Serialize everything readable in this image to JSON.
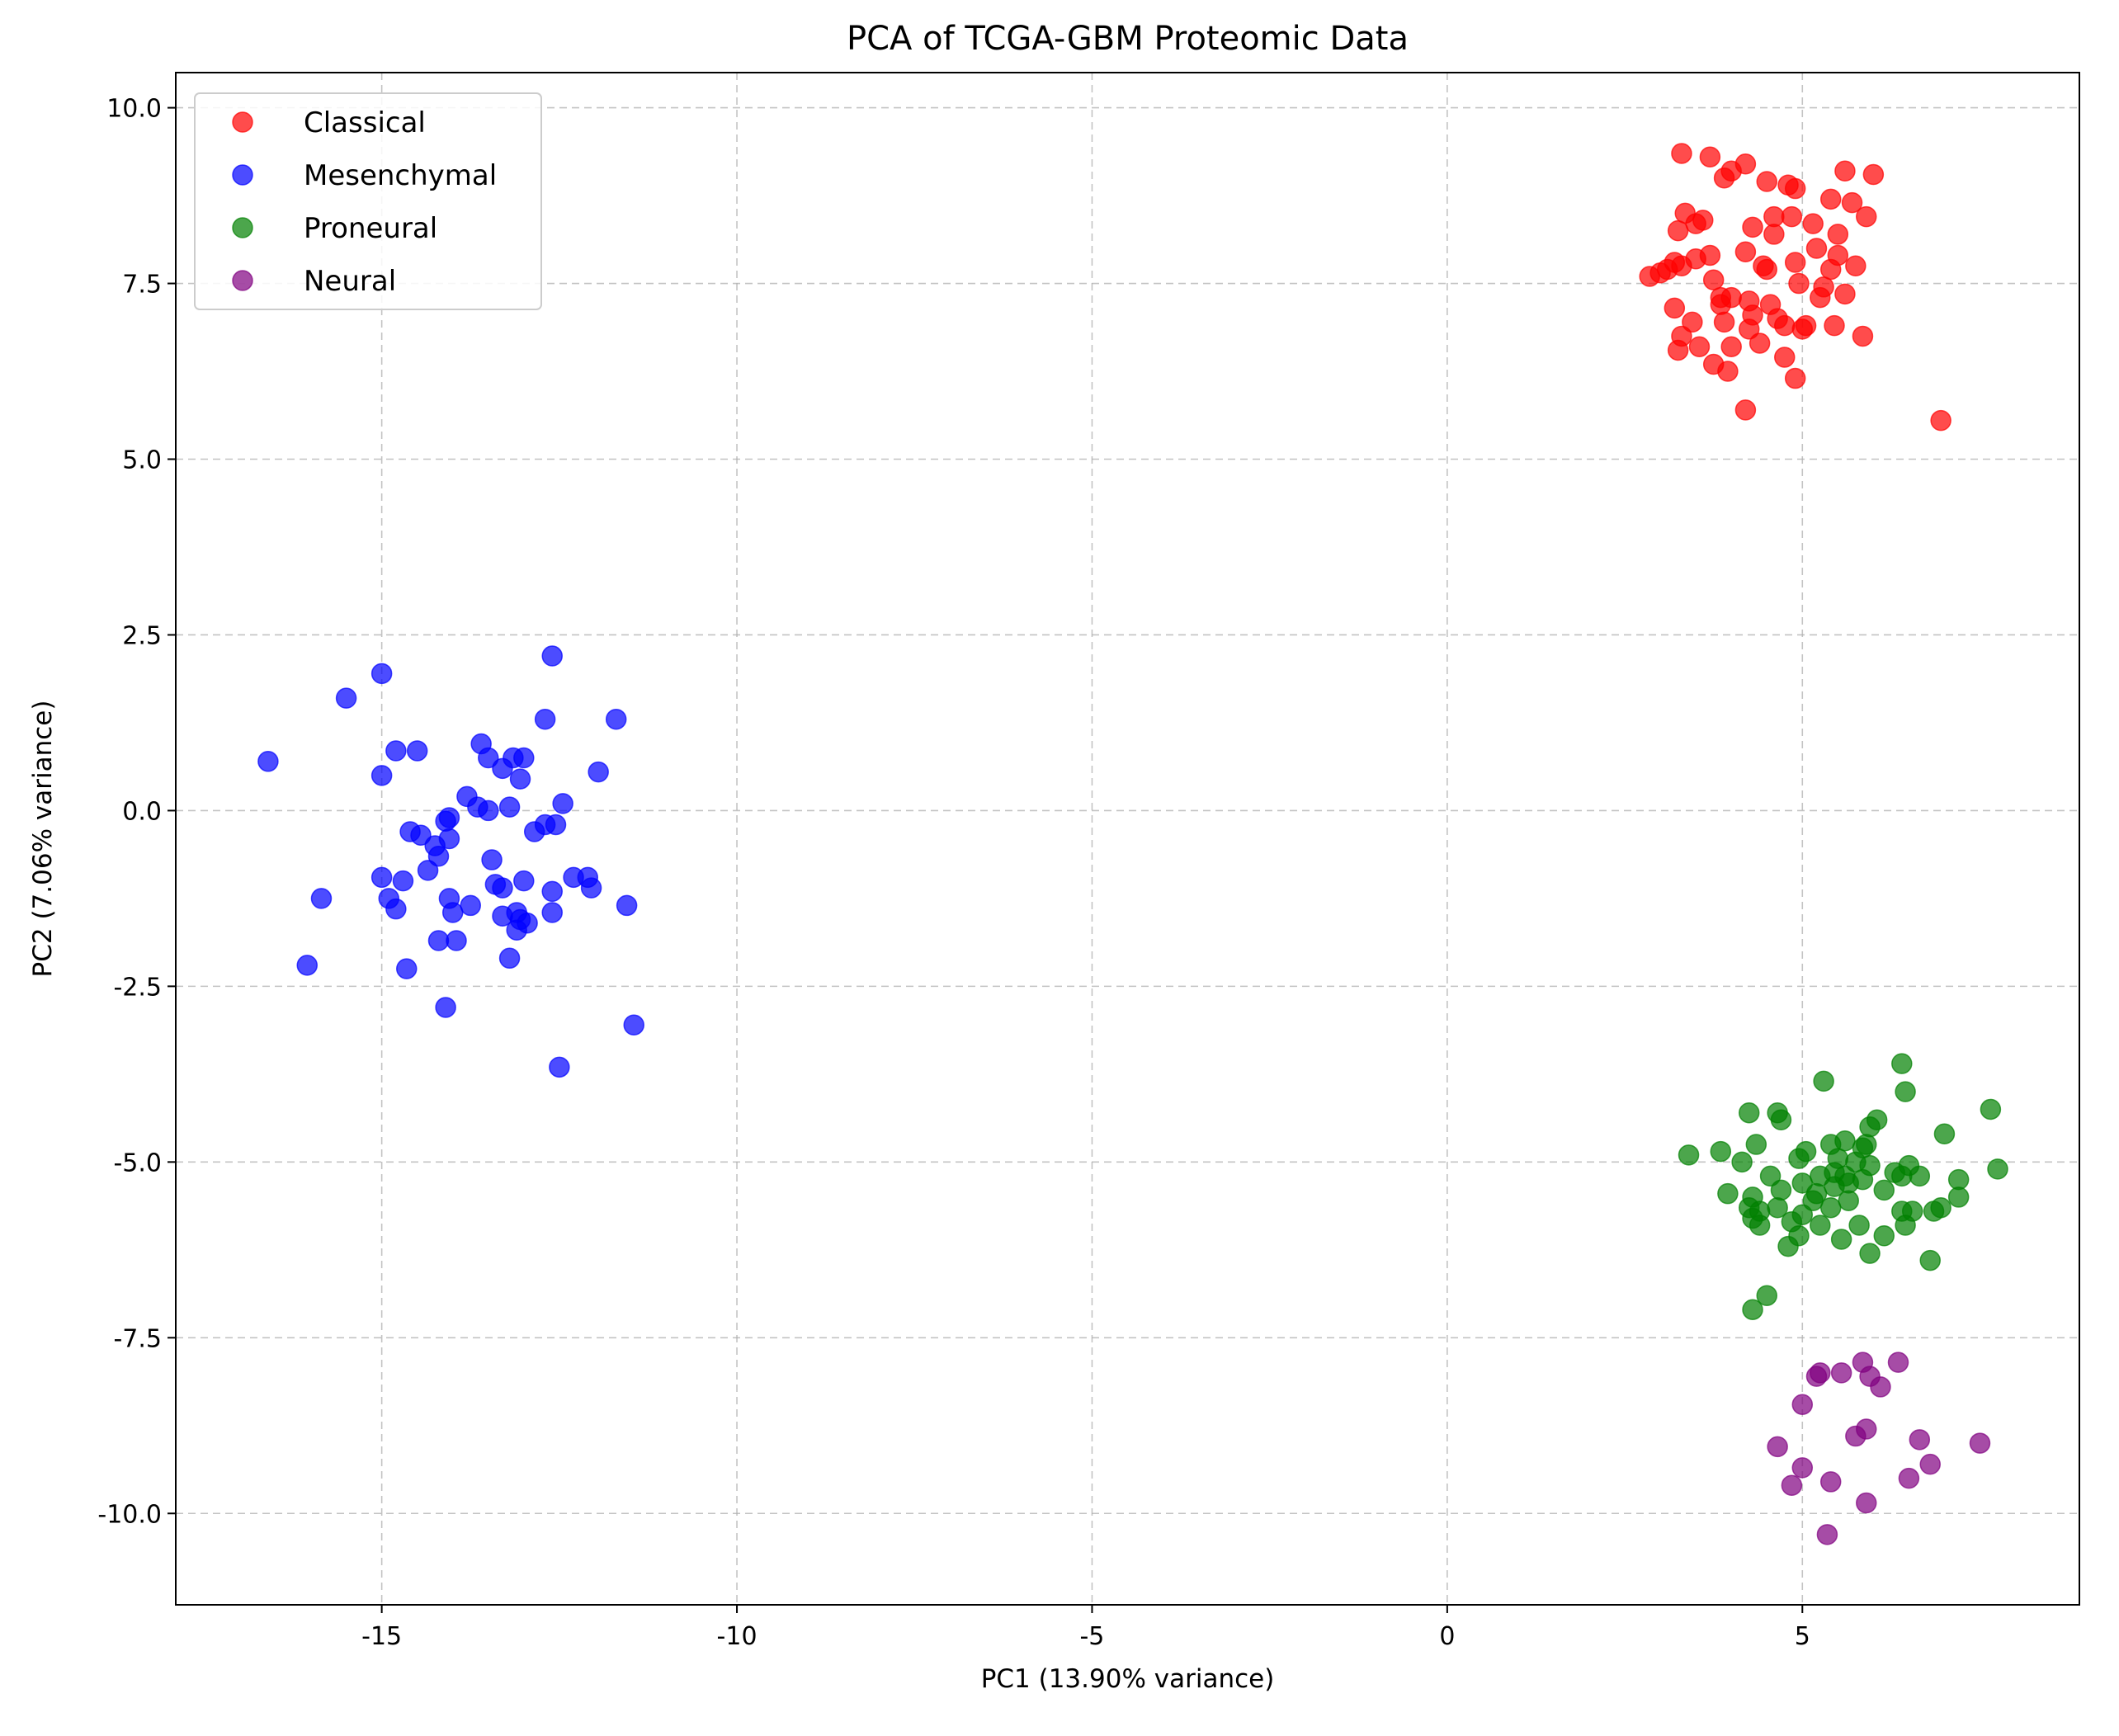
{
  "chart_data": {
    "type": "scatter",
    "title": "PCA of TCGA-GBM Proteomic Data",
    "xlabel": "PC1 (13.90% variance)",
    "ylabel": "PC2 (7.06% variance)",
    "xlim": [
      -17.9,
      8.9
    ],
    "ylim": [
      -11.3,
      10.5
    ],
    "xticks": [
      -15,
      -10,
      -5,
      0,
      5
    ],
    "xtick_labels": [
      "-15",
      "-10",
      "-5",
      "0",
      "5"
    ],
    "yticks": [
      -10,
      -7.5,
      -5,
      -2.5,
      0,
      2.5,
      5,
      7.5,
      10
    ],
    "ytick_labels": [
      "-10.0",
      "-7.5",
      "-5.0",
      "-2.5",
      "0.0",
      "2.5",
      "5.0",
      "7.5",
      "10.0"
    ],
    "grid": true,
    "legend_position": "top-left",
    "marker_alpha": 0.7,
    "series": [
      {
        "name": "Classical",
        "color": "#ff0000",
        "points": [
          [
            3.3,
            9.35
          ],
          [
            3.7,
            9.3
          ],
          [
            4.2,
            9.2
          ],
          [
            3.35,
            8.5
          ],
          [
            3.5,
            8.35
          ],
          [
            3.25,
            8.25
          ],
          [
            3.6,
            8.4
          ],
          [
            4.3,
            8.3
          ],
          [
            4.6,
            8.45
          ],
          [
            4.85,
            8.45
          ],
          [
            5.15,
            8.35
          ],
          [
            5.5,
            8.2
          ],
          [
            5.4,
            8.7
          ],
          [
            5.7,
            8.65
          ],
          [
            5.6,
            9.1
          ],
          [
            6.0,
            9.05
          ],
          [
            4.0,
            9.1
          ],
          [
            3.9,
            9.0
          ],
          [
            4.5,
            8.95
          ],
          [
            4.8,
            8.9
          ],
          [
            4.9,
            8.85
          ],
          [
            5.9,
            8.45
          ],
          [
            3.1,
            7.7
          ],
          [
            3.3,
            7.75
          ],
          [
            3.7,
            7.9
          ],
          [
            4.2,
            7.95
          ],
          [
            4.5,
            7.7
          ],
          [
            4.9,
            7.8
          ],
          [
            5.2,
            8.0
          ],
          [
            5.5,
            7.9
          ],
          [
            5.75,
            7.75
          ],
          [
            5.4,
            7.7
          ],
          [
            2.85,
            7.6
          ],
          [
            3.0,
            7.65
          ],
          [
            3.2,
            7.8
          ],
          [
            3.5,
            7.85
          ],
          [
            3.75,
            7.55
          ],
          [
            4.0,
            7.3
          ],
          [
            4.25,
            7.25
          ],
          [
            4.55,
            7.2
          ],
          [
            4.95,
            7.5
          ],
          [
            5.25,
            7.3
          ],
          [
            5.6,
            7.35
          ],
          [
            3.2,
            7.15
          ],
          [
            3.85,
            7.2
          ],
          [
            4.3,
            7.05
          ],
          [
            4.65,
            7.0
          ],
          [
            5.05,
            6.9
          ],
          [
            5.45,
            6.9
          ],
          [
            3.45,
            6.95
          ],
          [
            3.9,
            6.95
          ],
          [
            4.25,
            6.85
          ],
          [
            4.75,
            6.9
          ],
          [
            5.0,
            6.85
          ],
          [
            3.3,
            6.75
          ],
          [
            3.55,
            6.6
          ],
          [
            4.0,
            6.6
          ],
          [
            4.4,
            6.65
          ],
          [
            4.75,
            6.45
          ],
          [
            5.85,
            6.75
          ],
          [
            3.25,
            6.55
          ],
          [
            3.75,
            6.35
          ],
          [
            3.95,
            6.25
          ],
          [
            4.9,
            6.15
          ],
          [
            4.2,
            5.7
          ],
          [
            6.95,
            5.55
          ],
          [
            4.6,
            8.2
          ],
          [
            3.85,
            7.3
          ],
          [
            4.45,
            7.75
          ],
          [
            5.3,
            7.45
          ]
        ]
      },
      {
        "name": "Mesenchymal",
        "color": "#0000ff",
        "points": [
          [
            -15.0,
            1.95
          ],
          [
            -12.6,
            2.2
          ],
          [
            -15.5,
            1.6
          ],
          [
            -12.7,
            1.3
          ],
          [
            -11.7,
            1.3
          ],
          [
            -16.6,
            0.7
          ],
          [
            -15.0,
            0.5
          ],
          [
            -14.8,
            0.85
          ],
          [
            -14.5,
            0.85
          ],
          [
            -13.6,
            0.95
          ],
          [
            -13.5,
            0.75
          ],
          [
            -13.3,
            0.6
          ],
          [
            -13.15,
            0.75
          ],
          [
            -13.0,
            0.75
          ],
          [
            -13.05,
            0.45
          ],
          [
            -11.95,
            0.55
          ],
          [
            -13.8,
            0.2
          ],
          [
            -13.65,
            0.05
          ],
          [
            -13.5,
            0.0
          ],
          [
            -13.2,
            0.05
          ],
          [
            -12.45,
            0.1
          ],
          [
            -14.05,
            -0.1
          ],
          [
            -14.1,
            -0.15
          ],
          [
            -12.85,
            -0.3
          ],
          [
            -12.7,
            -0.2
          ],
          [
            -12.55,
            -0.2
          ],
          [
            -14.6,
            -0.3
          ],
          [
            -14.45,
            -0.35
          ],
          [
            -14.25,
            -0.5
          ],
          [
            -14.2,
            -0.65
          ],
          [
            -14.05,
            -0.4
          ],
          [
            -13.45,
            -0.7
          ],
          [
            -14.35,
            -0.85
          ],
          [
            -15.0,
            -0.95
          ],
          [
            -14.7,
            -1.0
          ],
          [
            -13.4,
            -1.05
          ],
          [
            -13.3,
            -1.1
          ],
          [
            -13.0,
            -1.0
          ],
          [
            -12.3,
            -0.95
          ],
          [
            -12.1,
            -0.95
          ],
          [
            -12.05,
            -1.1
          ],
          [
            -12.6,
            -1.15
          ],
          [
            -14.05,
            -1.25
          ],
          [
            -13.75,
            -1.35
          ],
          [
            -14.9,
            -1.25
          ],
          [
            -14.8,
            -1.4
          ],
          [
            -14.0,
            -1.45
          ],
          [
            -13.3,
            -1.5
          ],
          [
            -13.1,
            -1.45
          ],
          [
            -13.05,
            -1.55
          ],
          [
            -12.95,
            -1.6
          ],
          [
            -13.1,
            -1.7
          ],
          [
            -12.6,
            -1.45
          ],
          [
            -11.55,
            -1.35
          ],
          [
            -15.85,
            -1.25
          ],
          [
            -14.2,
            -1.85
          ],
          [
            -13.95,
            -1.85
          ],
          [
            -16.05,
            -2.2
          ],
          [
            -14.65,
            -2.25
          ],
          [
            -13.2,
            -2.1
          ],
          [
            -14.1,
            -2.8
          ],
          [
            -11.45,
            -3.05
          ],
          [
            -12.5,
            -3.65
          ]
        ]
      },
      {
        "name": "Proneural",
        "color": "#008000",
        "points": [
          [
            6.4,
            -3.6
          ],
          [
            5.3,
            -3.85
          ],
          [
            6.45,
            -4.0
          ],
          [
            4.25,
            -4.3
          ],
          [
            4.65,
            -4.3
          ],
          [
            4.7,
            -4.4
          ],
          [
            7.65,
            -4.25
          ],
          [
            6.05,
            -4.4
          ],
          [
            5.95,
            -4.5
          ],
          [
            7.0,
            -4.6
          ],
          [
            4.35,
            -4.75
          ],
          [
            5.4,
            -4.75
          ],
          [
            5.6,
            -4.7
          ],
          [
            5.9,
            -4.75
          ],
          [
            3.4,
            -4.9
          ],
          [
            3.85,
            -4.85
          ],
          [
            4.15,
            -5.0
          ],
          [
            4.55,
            -5.2
          ],
          [
            4.95,
            -4.95
          ],
          [
            5.05,
            -4.85
          ],
          [
            5.5,
            -4.95
          ],
          [
            5.75,
            -5.0
          ],
          [
            5.85,
            -4.8
          ],
          [
            5.95,
            -5.05
          ],
          [
            5.45,
            -5.15
          ],
          [
            5.25,
            -5.2
          ],
          [
            5.6,
            -5.2
          ],
          [
            6.3,
            -5.15
          ],
          [
            6.5,
            -5.05
          ],
          [
            6.4,
            -5.2
          ],
          [
            6.65,
            -5.2
          ],
          [
            7.75,
            -5.1
          ],
          [
            4.7,
            -5.4
          ],
          [
            5.0,
            -5.3
          ],
          [
            5.2,
            -5.45
          ],
          [
            5.45,
            -5.35
          ],
          [
            5.65,
            -5.3
          ],
          [
            5.85,
            -5.25
          ],
          [
            6.15,
            -5.4
          ],
          [
            7.2,
            -5.25
          ],
          [
            3.95,
            -5.45
          ],
          [
            4.3,
            -5.5
          ],
          [
            4.25,
            -5.65
          ],
          [
            4.3,
            -5.8
          ],
          [
            4.4,
            -5.7
          ],
          [
            4.65,
            -5.65
          ],
          [
            5.0,
            -5.75
          ],
          [
            5.15,
            -5.55
          ],
          [
            5.4,
            -5.65
          ],
          [
            5.65,
            -5.55
          ],
          [
            6.4,
            -5.7
          ],
          [
            6.55,
            -5.7
          ],
          [
            6.85,
            -5.7
          ],
          [
            6.95,
            -5.65
          ],
          [
            7.2,
            -5.5
          ],
          [
            4.4,
            -5.9
          ],
          [
            4.85,
            -5.85
          ],
          [
            5.25,
            -5.9
          ],
          [
            5.55,
            -6.1
          ],
          [
            5.8,
            -5.9
          ],
          [
            6.15,
            -6.05
          ],
          [
            6.45,
            -5.9
          ],
          [
            4.95,
            -6.05
          ],
          [
            4.8,
            -6.2
          ],
          [
            5.95,
            -6.3
          ],
          [
            6.8,
            -6.4
          ],
          [
            4.5,
            -6.9
          ],
          [
            4.3,
            -7.1
          ]
        ]
      },
      {
        "name": "Neural",
        "color": "#800080",
        "points": [
          [
            5.85,
            -7.85
          ],
          [
            6.35,
            -7.85
          ],
          [
            5.2,
            -8.05
          ],
          [
            5.25,
            -8.0
          ],
          [
            5.55,
            -8.0
          ],
          [
            5.95,
            -8.05
          ],
          [
            6.1,
            -8.2
          ],
          [
            5.0,
            -8.45
          ],
          [
            5.9,
            -8.8
          ],
          [
            5.75,
            -8.9
          ],
          [
            6.65,
            -8.95
          ],
          [
            7.5,
            -9.0
          ],
          [
            4.65,
            -9.05
          ],
          [
            6.8,
            -9.3
          ],
          [
            5.0,
            -9.35
          ],
          [
            6.5,
            -9.5
          ],
          [
            5.4,
            -9.55
          ],
          [
            4.85,
            -9.6
          ],
          [
            5.9,
            -9.85
          ],
          [
            5.35,
            -10.3
          ]
        ]
      }
    ]
  }
}
